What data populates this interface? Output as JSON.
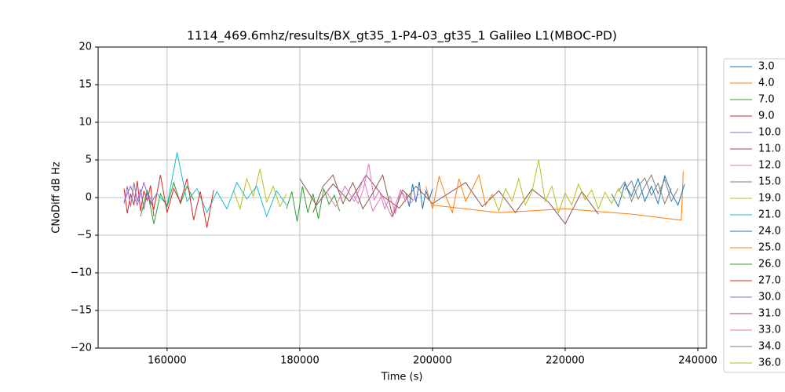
{
  "chart_data": {
    "type": "line",
    "title": "1114_469.6mhz/results/BX_gt35_1-P4-03_gt35_1 Galileo L1(MBOC-PD)",
    "x_label": "Time (s)",
    "y_label": "CNoDiff dB Hz",
    "xlim": [
      149600,
      241300
    ],
    "ylim": [
      -20,
      20
    ],
    "xticks": [
      160000,
      180000,
      200000,
      220000,
      240000
    ],
    "yticks": [
      {
        "value": -20,
        "label": "−20"
      },
      {
        "value": -15,
        "label": "−15"
      },
      {
        "value": -10,
        "label": "−10"
      },
      {
        "value": -5,
        "label": "−5"
      },
      0,
      5,
      10,
      15,
      20
    ],
    "grid": true,
    "legend": "outside-right",
    "series": [
      {
        "name": "3.0",
        "color": "#1f77b4",
        "x": [
          196000,
          196500,
          197000,
          197500,
          198000,
          198500,
          199000,
          199500,
          200000
        ],
        "values": [
          0.5,
          -1.2,
          1.8,
          -0.6,
          2.1,
          -1.5,
          0.9,
          -0.3,
          1.2
        ]
      },
      {
        "name": "4.0",
        "color": "#ff7f0e",
        "x": [
          200000,
          210000,
          220000,
          230000,
          237500,
          237800
        ],
        "values": [
          -1.0,
          -2.0,
          -1.5,
          -2.2,
          -3.0,
          3.5
        ]
      },
      {
        "name": "7.0",
        "color": "#2ca02c",
        "x": [
          178000,
          178800,
          179600,
          180400,
          181200,
          182000,
          182800,
          183600,
          184400,
          185200,
          186000
        ],
        "values": [
          -1.5,
          0.8,
          -3.2,
          1.5,
          -2.0,
          0.5,
          -2.8,
          1.2,
          -0.9,
          0.3,
          -1.8
        ]
      },
      {
        "name": "9.0",
        "color": "#d62728",
        "x": [
          153500,
          154000,
          154500,
          155000,
          155500,
          156000,
          156500,
          157000,
          157500,
          158000
        ],
        "values": [
          1.2,
          -2.1,
          0.5,
          -1.0,
          2.2,
          -1.8,
          0.9,
          -0.4,
          1.6,
          -2.5
        ]
      },
      {
        "name": "10.0",
        "color": "#9467bd",
        "x": [
          153500,
          154000,
          154500,
          155000,
          155500,
          156000,
          156500,
          157000,
          157500
        ],
        "values": [
          -0.8,
          1.5,
          -1.2,
          2.0,
          -0.5,
          1.1,
          -1.6,
          0.7,
          -0.2
        ]
      },
      {
        "name": "11.0",
        "color": "#8c564b",
        "x": [
          180000,
          182500,
          185000,
          187500,
          190000,
          192500,
          195000,
          197500,
          200000,
          202500,
          205000,
          207500,
          210000,
          212500,
          215000,
          217500,
          220000,
          222500,
          225000
        ],
        "values": [
          2.5,
          -1.0,
          1.8,
          -0.5,
          3.0,
          0.2,
          -1.4,
          1.5,
          -0.8,
          0.6,
          2.0,
          -1.2,
          0.9,
          -2.0,
          1.1,
          -0.6,
          -3.5,
          0.8,
          -2.2
        ]
      },
      {
        "name": "12.0",
        "color": "#e377c2",
        "x": [
          188000,
          188800,
          189600,
          190400,
          191200,
          192000,
          192800,
          193600,
          194400,
          195200,
          196000
        ],
        "values": [
          0.5,
          -0.8,
          1.2,
          4.5,
          -0.3,
          0.9,
          -1.5,
          0.2,
          -2.1,
          1.0,
          -0.6
        ]
      },
      {
        "name": "15.0",
        "color": "#7f7f7f",
        "x": [
          228000,
          229000,
          230000,
          231000,
          232000,
          233000,
          234000,
          235000,
          236000
        ],
        "values": [
          0.8,
          2.1,
          -0.5,
          1.5,
          2.6,
          0.3,
          1.9,
          -0.8,
          1.2
        ]
      },
      {
        "name": "19.0",
        "color": "#bcbd22",
        "x": [
          170000,
          171000,
          172000,
          173000,
          174000,
          175000,
          176000,
          177000,
          178000
        ],
        "values": [
          1.0,
          -1.5,
          2.5,
          0.2,
          3.8,
          -0.6,
          1.5,
          -1.2,
          0.5
        ]
      },
      {
        "name": "21.0",
        "color": "#17becf",
        "x": [
          158500,
          160000,
          161500,
          163000,
          164500,
          166000,
          167500,
          169000,
          170500,
          172000,
          173500,
          175000,
          176500,
          178000
        ],
        "values": [
          0.5,
          -1.0,
          6.0,
          -0.5,
          1.2,
          -2.0,
          0.8,
          -1.5,
          2.0,
          -0.2,
          1.5,
          -2.5,
          0.9,
          -1.0
        ]
      },
      {
        "name": "24.0",
        "color": "#1f77b4",
        "x": [
          227000,
          228000,
          229000,
          230000,
          231000,
          232000,
          233000,
          234000,
          235000,
          236000,
          237000,
          238000
        ],
        "values": [
          0.5,
          -1.2,
          1.8,
          0.2,
          2.5,
          -0.5,
          1.5,
          -0.8,
          2.9,
          0.6,
          -1.0,
          1.8
        ]
      },
      {
        "name": "25.0",
        "color": "#ff7f0e",
        "x": [
          199000,
          200000,
          201000,
          202000,
          203000,
          204000,
          205000,
          206000,
          207000,
          208000,
          209000
        ],
        "values": [
          1.5,
          -1.5,
          2.8,
          0.2,
          -2.0,
          2.5,
          -0.5,
          1.2,
          3.0,
          -1.0,
          0.4
        ]
      },
      {
        "name": "26.0",
        "color": "#2ca02c",
        "x": [
          156000,
          157000,
          158000,
          159000,
          160000,
          161000,
          162000,
          163000,
          164000
        ],
        "values": [
          -2.5,
          1.0,
          -3.5,
          0.5,
          -1.2,
          2.0,
          -0.8,
          1.5,
          -0.3
        ]
      },
      {
        "name": "27.0",
        "color": "#d62728",
        "x": [
          157000,
          158000,
          159000,
          160000,
          161000,
          162000,
          163000,
          164000,
          165000,
          166000,
          167000
        ],
        "values": [
          0.5,
          -1.5,
          3.0,
          -2.0,
          1.2,
          -0.6,
          2.5,
          -3.0,
          0.8,
          -4.0,
          1.0
        ]
      },
      {
        "name": "30.0",
        "color": "#9467bd",
        "x": [
          153500,
          154500,
          155500,
          156500,
          157500,
          158500
        ],
        "values": [
          -0.5,
          1.5,
          -1.0,
          2.0,
          -0.8,
          0.6
        ]
      },
      {
        "name": "31.0",
        "color": "#8c564b",
        "x": [
          182000,
          183500,
          185000,
          186500,
          188000,
          189500,
          191000,
          192500,
          194000,
          195500,
          197000
        ],
        "values": [
          -2.0,
          1.5,
          3.0,
          -0.8,
          2.0,
          -1.5,
          0.6,
          3.0,
          -2.5,
          1.0,
          -0.3
        ]
      },
      {
        "name": "33.0",
        "color": "#e377c2",
        "x": [
          184000,
          185400,
          186800,
          188200,
          189600,
          191000,
          192400,
          193800,
          195200,
          196600,
          198000
        ],
        "values": [
          0.8,
          -1.2,
          1.5,
          -0.5,
          2.5,
          -1.8,
          0.3,
          -2.5,
          1.0,
          -0.8,
          0.5
        ]
      },
      {
        "name": "34.0",
        "color": "#7f7f7f",
        "x": [
          229000,
          230000,
          231000,
          232000,
          233000,
          234000,
          235000,
          236000,
          237000
        ],
        "values": [
          1.0,
          2.2,
          -0.2,
          1.5,
          3.0,
          0.5,
          2.4,
          -0.5,
          1.2
        ]
      },
      {
        "name": "36.0",
        "color": "#bcbd22",
        "x": [
          209000,
          210000,
          211000,
          212000,
          213000,
          214000,
          215000,
          216000,
          217000,
          218000,
          219000,
          220000,
          221000,
          222000,
          223000,
          224000,
          225000,
          226000,
          227000,
          228000,
          229000
        ],
        "values": [
          0.5,
          -1.8,
          1.2,
          -0.5,
          2.5,
          -1.0,
          0.8,
          5.0,
          -0.5,
          1.5,
          -2.0,
          0.6,
          -1.0,
          1.8,
          -0.3,
          1.0,
          -1.5,
          0.7,
          -0.8,
          1.2,
          -0.2
        ]
      }
    ]
  }
}
